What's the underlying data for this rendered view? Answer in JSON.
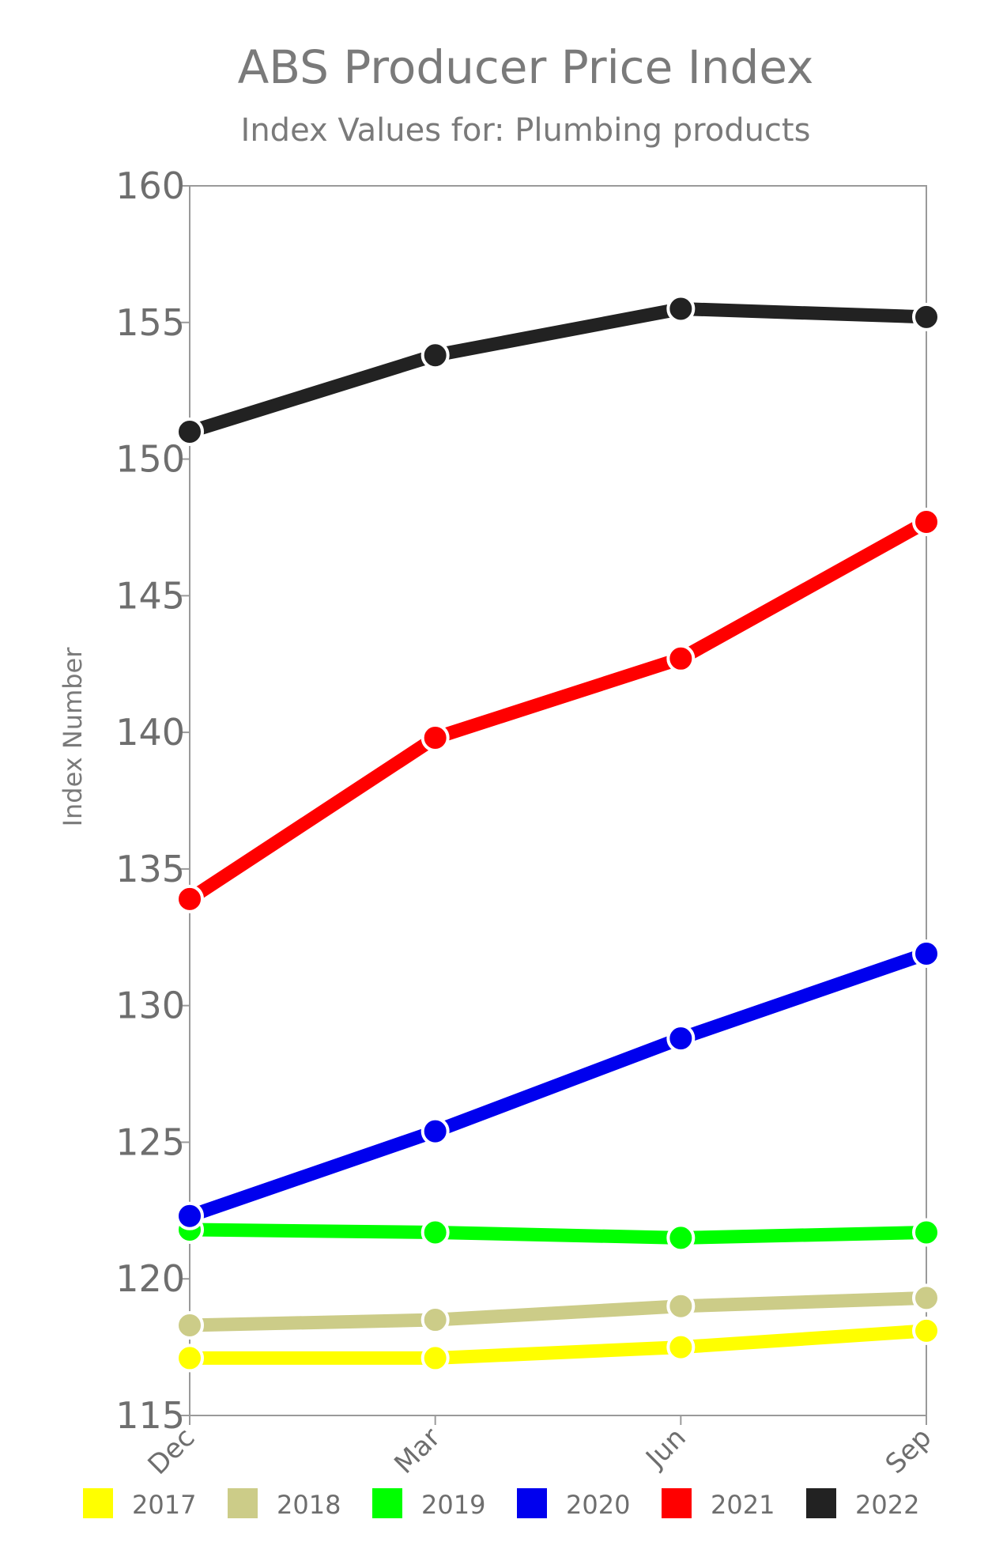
{
  "chart_data": {
    "type": "line",
    "title": "ABS Producer Price Index",
    "subtitle": "Index Values for: Plumbing products",
    "ylabel": "Index Number",
    "xlabel": "",
    "categories": [
      "Dec",
      "Mar",
      "Jun",
      "Sep"
    ],
    "ylim": [
      115,
      160
    ],
    "yticks": [
      115,
      120,
      125,
      130,
      135,
      140,
      145,
      150,
      155,
      160
    ],
    "grid": false,
    "legend_position": "bottom",
    "series": [
      {
        "name": "2017",
        "color": "#ffff00",
        "values": [
          117.1,
          117.1,
          117.5,
          118.1
        ]
      },
      {
        "name": "2018",
        "color": "#cccc88",
        "values": [
          118.3,
          118.5,
          119.0,
          119.3
        ]
      },
      {
        "name": "2019",
        "color": "#00ff00",
        "values": [
          121.8,
          121.7,
          121.5,
          121.7
        ]
      },
      {
        "name": "2020",
        "color": "#0000ee",
        "values": [
          122.3,
          125.4,
          128.8,
          131.9
        ]
      },
      {
        "name": "2021",
        "color": "#ff0000",
        "values": [
          133.9,
          139.8,
          142.7,
          147.7
        ]
      },
      {
        "name": "2022",
        "color": "#222222",
        "values": [
          151.0,
          153.8,
          155.5,
          155.2
        ]
      }
    ]
  }
}
